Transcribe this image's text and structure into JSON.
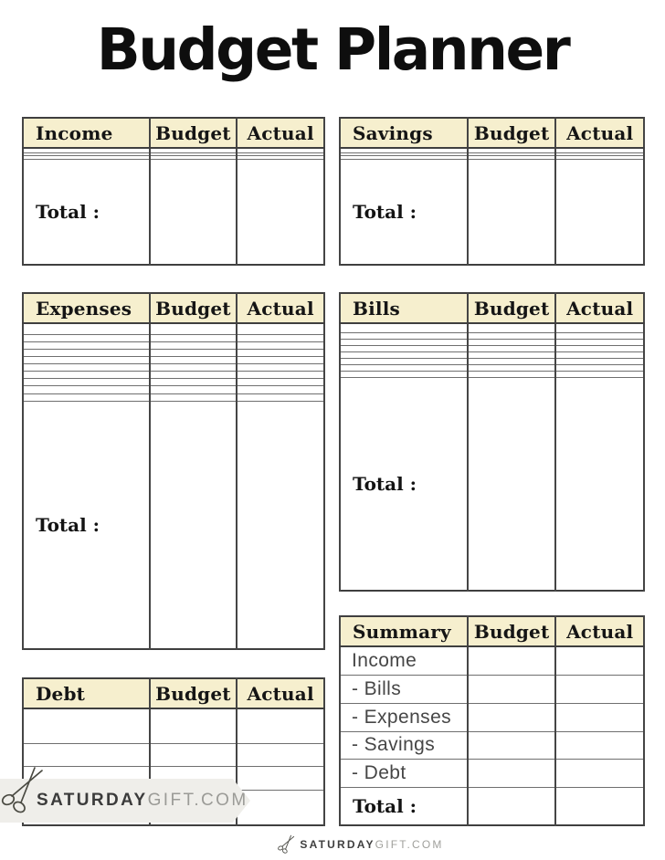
{
  "title": "Budget Planner",
  "tables": {
    "income": {
      "title": "Income",
      "budget_col": "Budget",
      "actual_col": "Actual",
      "empty_rows": 3,
      "total_label": "Total :"
    },
    "savings": {
      "title": "Savings",
      "budget_col": "Budget",
      "actual_col": "Actual",
      "empty_rows": 3,
      "total_label": "Total :"
    },
    "expenses": {
      "title": "Expenses",
      "budget_col": "Budget",
      "actual_col": "Actual",
      "empty_rows": 10,
      "total_label": "Total :"
    },
    "bills": {
      "title": "Bills",
      "budget_col": "Budget",
      "actual_col": "Actual",
      "empty_rows": 8,
      "total_label": "Total :"
    },
    "debt": {
      "title": "Debt",
      "budget_col": "Budget",
      "actual_col": "Actual",
      "empty_rows": 4
    },
    "summary": {
      "title": "Summary",
      "budget_col": "Budget",
      "actual_col": "Actual",
      "labels": [
        "Income",
        "- Bills",
        "- Expenses",
        "- Savings",
        "- Debt"
      ],
      "total_label": "Total :"
    }
  },
  "watermark": {
    "brand_bold": "SATURDAY",
    "brand_light": "GIFT.COM",
    "icon": "scissors-icon"
  },
  "footer": {
    "brand_bold": "SATURDAY",
    "brand_light": "GIFT.COM",
    "icon": "scissors-icon"
  },
  "colors": {
    "header_bg": "#f6efce",
    "border_dark": "#3f3f3f",
    "border_light": "#6f6f6f",
    "title_black": "#0e0e0e",
    "summary_label_gray": "#464646",
    "banner_bg": "#efeeea",
    "brand_dark": "#3b3b3b",
    "brand_light_gray": "#9b9b97"
  }
}
